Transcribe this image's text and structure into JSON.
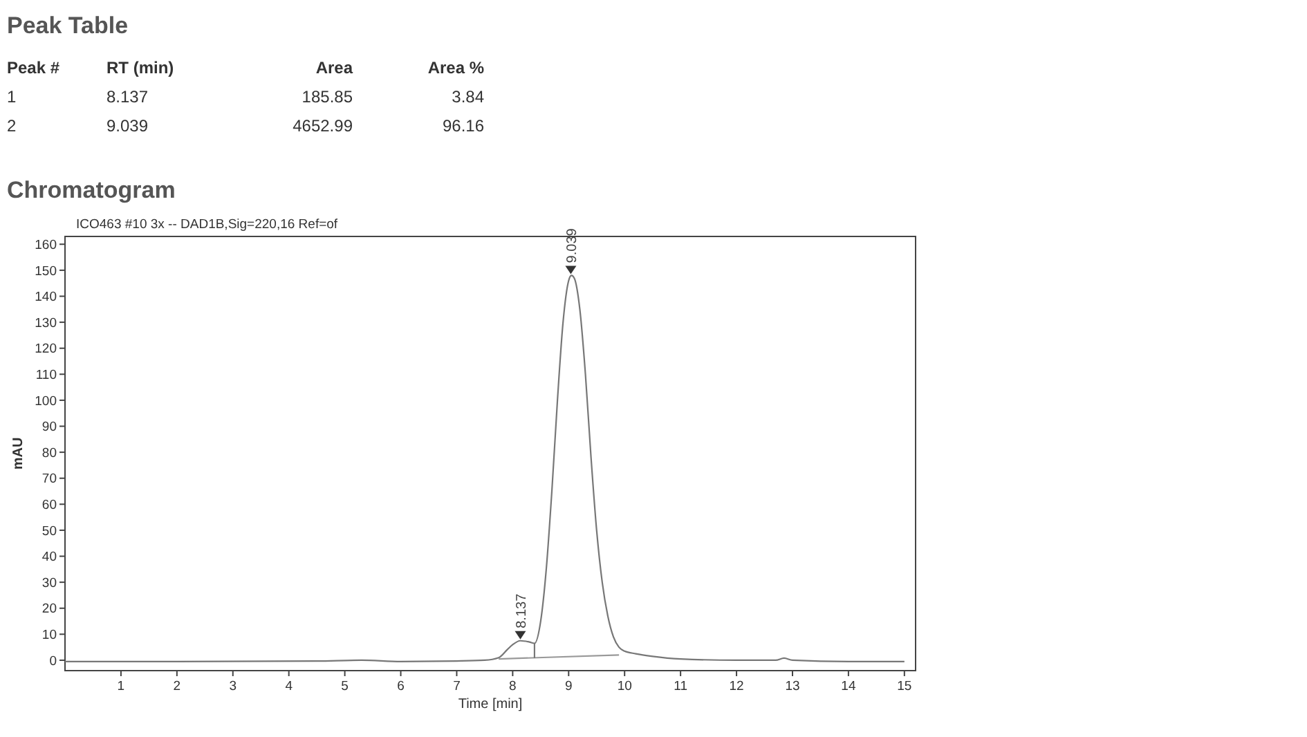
{
  "chart_data": [
    {
      "type": "other",
      "title": "Peak Table",
      "annotations": [
        "Peak #",
        "RT (min)",
        "Area",
        "Area %",
        "1",
        "8.137",
        "185.85",
        "3.84",
        "2",
        "9.039",
        "4652.99",
        "96.16"
      ]
    },
    {
      "type": "line",
      "title": "Chromatogram",
      "subtitle": "ICO463 #10 3x -- DAD1B,Sig=220,16  Ref=of",
      "xlabel": "Time [min]",
      "ylabel": "mAU",
      "xlim": [
        0,
        15.2
      ],
      "ylim": [
        -4,
        163
      ],
      "xticks": [
        1,
        2,
        3,
        4,
        5,
        6,
        7,
        8,
        9,
        10,
        11,
        12,
        13,
        14,
        15
      ],
      "yticks": [
        0,
        10,
        20,
        30,
        40,
        50,
        60,
        70,
        80,
        90,
        100,
        110,
        120,
        130,
        140,
        150,
        160
      ],
      "grid": false,
      "marker": "none",
      "line_style": "solid",
      "series": [
        {
          "color": "#777777",
          "x": [
            0,
            2,
            4.5,
            5.3,
            6,
            7,
            7.5,
            7.75,
            7.9,
            8.0,
            8.137,
            8.3,
            8.39,
            8.5,
            8.6,
            8.7,
            8.8,
            8.9,
            9.0,
            9.05,
            9.1,
            9.2,
            9.3,
            9.4,
            9.5,
            9.6,
            9.7,
            9.8,
            9.9,
            10.0,
            10.2,
            10.5,
            11,
            12,
            12.7,
            12.85,
            13,
            14,
            15
          ],
          "values": [
            -0.5,
            -0.5,
            -0.3,
            0,
            -0.5,
            -0.3,
            0,
            1,
            4,
            6,
            7.5,
            7,
            6.5,
            15,
            35,
            65,
            100,
            130,
            146,
            148,
            147,
            135,
            110,
            78,
            50,
            30,
            17,
            9,
            5,
            3.5,
            2.5,
            1.5,
            0.5,
            0,
            0,
            0.8,
            0,
            -0.5,
            -0.5
          ]
        },
        {
          "color": "#999999",
          "x": [
            7.75,
            9.9
          ],
          "values": [
            0.5,
            2
          ]
        },
        {
          "color": "#777777",
          "x": [
            8.39,
            8.39
          ],
          "values": [
            0.8,
            6.5
          ]
        }
      ],
      "annotations": [
        {
          "text": "8.137",
          "x": 8.137,
          "y": 7.5
        },
        {
          "text": "9.039",
          "x": 9.039,
          "y": 148
        }
      ]
    }
  ]
}
